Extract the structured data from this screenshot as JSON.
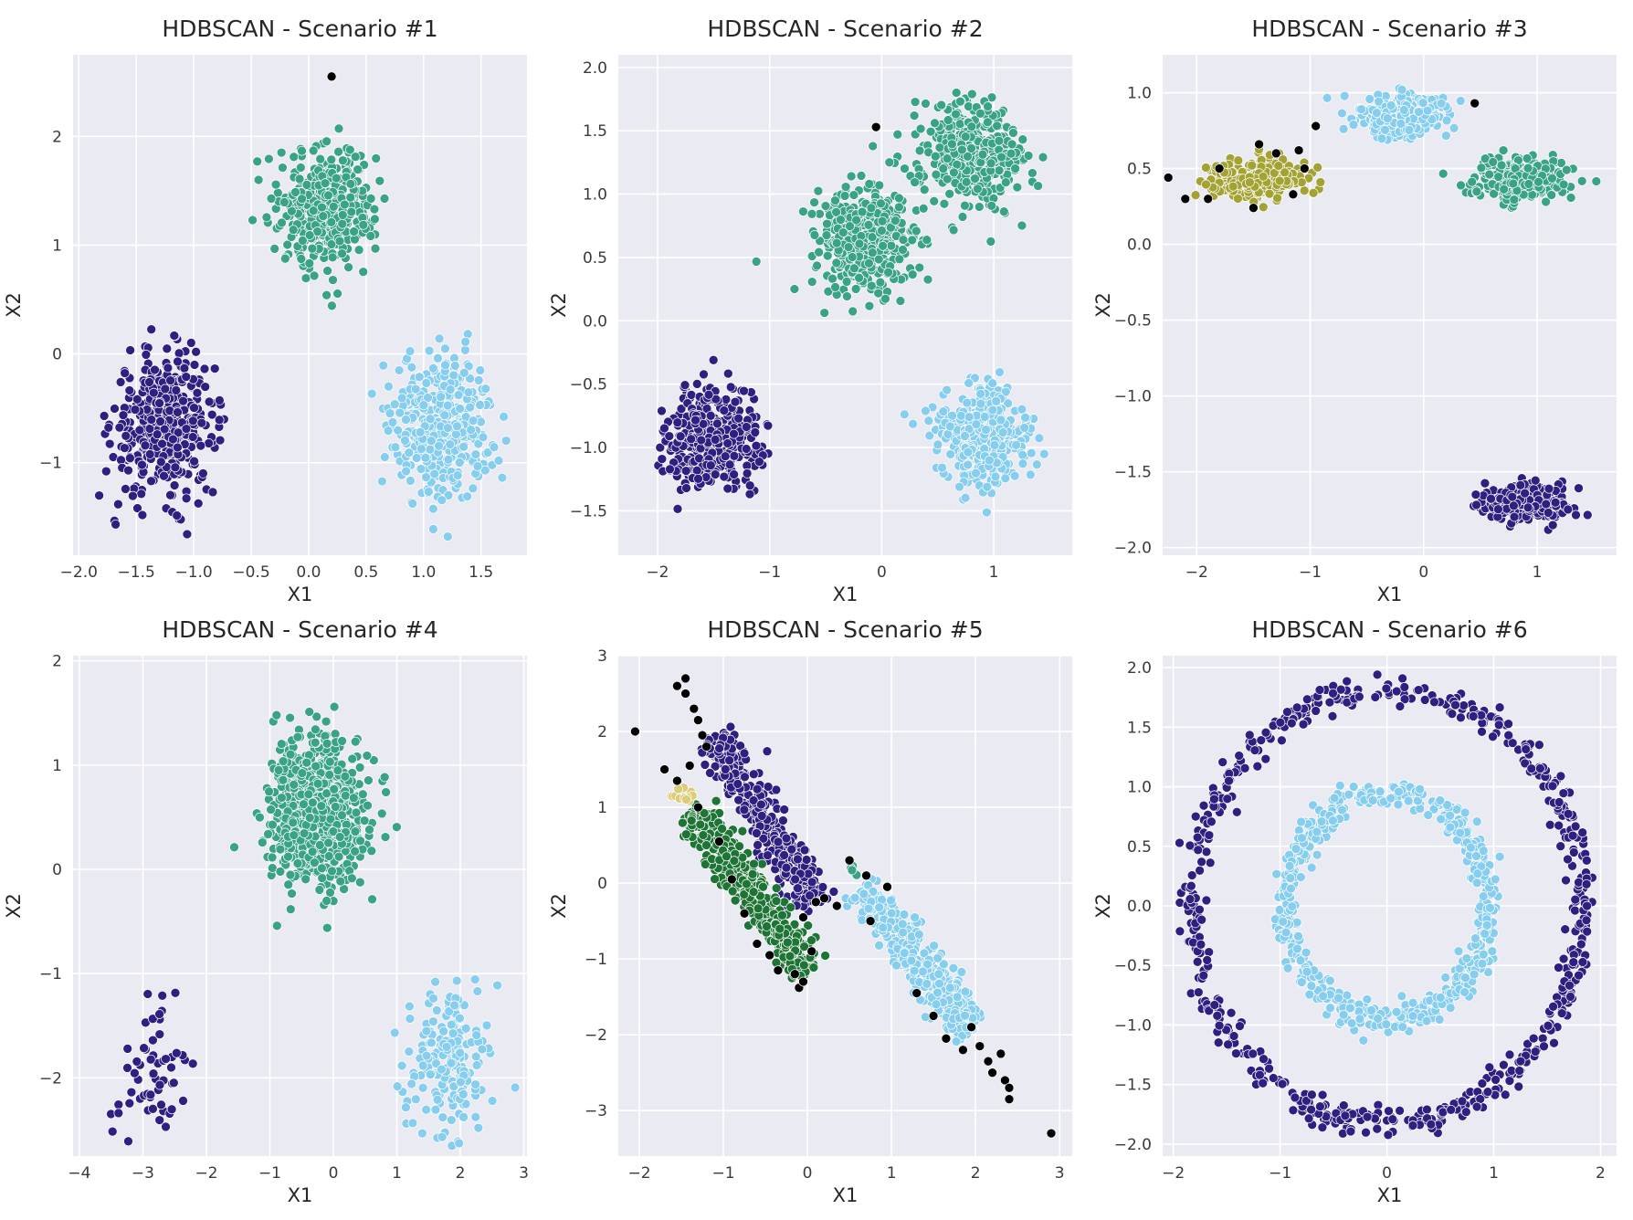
{
  "colors": {
    "cluster_indigo": "#2e1f80",
    "cluster_teal": "#3aa387",
    "cluster_skyblue": "#87cdee",
    "cluster_olive": "#a3a233",
    "cluster_darkgreen": "#1d7434",
    "cluster_sand": "#dccc7a",
    "noise": "#000000",
    "panel_background": "#eaeaf2",
    "grid": "#ffffff"
  },
  "chart_data": [
    {
      "type": "scatter",
      "title": "HDBSCAN - Scenario #1",
      "xlabel": "X1",
      "ylabel": "X2",
      "xlim": [
        -2.05,
        1.9
      ],
      "ylim": [
        -1.85,
        2.75
      ],
      "xticks": [
        -2.0,
        -1.5,
        -1.0,
        -0.5,
        0.0,
        0.5,
        1.0,
        1.5
      ],
      "xtick_labels": [
        "−2.0",
        "−1.5",
        "−1.0",
        "−0.5",
        "0.0",
        "0.5",
        "1.0",
        "1.5"
      ],
      "yticks": [
        -1,
        0,
        1,
        2
      ],
      "ytick_labels": [
        "−1",
        "0",
        "1",
        "2"
      ],
      "grid": true,
      "clusters": [
        {
          "color": "cluster_indigo",
          "shape": "gauss",
          "cx": -1.25,
          "cy": -0.65,
          "sx": 0.22,
          "sy": 0.32,
          "n": 420
        },
        {
          "color": "cluster_teal",
          "shape": "gauss",
          "cx": 0.15,
          "cy": 1.35,
          "sx": 0.2,
          "sy": 0.27,
          "n": 420
        },
        {
          "color": "cluster_skyblue",
          "shape": "gauss",
          "cx": 1.15,
          "cy": -0.65,
          "sx": 0.22,
          "sy": 0.32,
          "n": 420
        }
      ],
      "noise_points": [
        [
          0.2,
          2.55
        ]
      ]
    },
    {
      "type": "scatter",
      "title": "HDBSCAN - Scenario #2",
      "xlabel": "X1",
      "ylabel": "X2",
      "xlim": [
        -2.35,
        1.7
      ],
      "ylim": [
        -1.85,
        2.1
      ],
      "xticks": [
        -2,
        -1,
        0,
        1
      ],
      "xtick_labels": [
        "−2",
        "−1",
        "0",
        "1"
      ],
      "yticks": [
        -1.5,
        -1.0,
        -0.5,
        0.0,
        0.5,
        1.0,
        1.5,
        2.0
      ],
      "ytick_labels": [
        "−1.5",
        "−1.0",
        "−0.5",
        "0.0",
        "0.5",
        "1.0",
        "1.5",
        "2.0"
      ],
      "grid": true,
      "clusters": [
        {
          "color": "cluster_indigo",
          "shape": "gauss",
          "cx": -1.5,
          "cy": -0.95,
          "sx": 0.2,
          "sy": 0.2,
          "n": 420
        },
        {
          "color": "cluster_teal",
          "shape": "gauss",
          "cx": -0.15,
          "cy": 0.65,
          "sx": 0.22,
          "sy": 0.2,
          "n": 420
        },
        {
          "color": "cluster_teal",
          "shape": "gauss",
          "cx": 0.8,
          "cy": 1.3,
          "sx": 0.22,
          "sy": 0.2,
          "n": 420
        },
        {
          "color": "cluster_skyblue",
          "shape": "gauss",
          "cx": 0.9,
          "cy": -0.9,
          "sx": 0.2,
          "sy": 0.2,
          "n": 420
        }
      ],
      "noise_points": [
        [
          -0.05,
          1.53
        ]
      ]
    },
    {
      "type": "scatter",
      "title": "HDBSCAN - Scenario #3",
      "xlabel": "X1",
      "ylabel": "X2",
      "xlim": [
        -2.3,
        1.7
      ],
      "ylim": [
        -2.05,
        1.25
      ],
      "xticks": [
        -2,
        -1,
        0,
        1
      ],
      "xtick_labels": [
        "−2",
        "−1",
        "0",
        "1"
      ],
      "yticks": [
        -2.0,
        -1.5,
        -1.0,
        -0.5,
        0.0,
        0.5,
        1.0
      ],
      "ytick_labels": [
        "−2.0",
        "−1.5",
        "−1.0",
        "−0.5",
        "0.0",
        "0.5",
        "1.0"
      ],
      "grid": true,
      "clusters": [
        {
          "color": "cluster_olive",
          "shape": "gauss",
          "cx": -1.5,
          "cy": 0.43,
          "sx": 0.2,
          "sy": 0.065,
          "n": 360
        },
        {
          "color": "cluster_skyblue",
          "shape": "gauss",
          "cx": -0.2,
          "cy": 0.85,
          "sx": 0.2,
          "sy": 0.065,
          "n": 360
        },
        {
          "color": "cluster_teal",
          "shape": "gauss",
          "cx": 0.85,
          "cy": 0.43,
          "sx": 0.2,
          "sy": 0.065,
          "n": 360
        },
        {
          "color": "cluster_indigo",
          "shape": "gauss",
          "cx": 0.9,
          "cy": -1.7,
          "sx": 0.2,
          "sy": 0.055,
          "n": 360
        }
      ],
      "noise_points": [
        [
          -2.1,
          0.3
        ],
        [
          -1.9,
          0.3
        ],
        [
          -1.8,
          0.5
        ],
        [
          -1.5,
          0.24
        ],
        [
          -1.3,
          0.6
        ],
        [
          -1.15,
          0.33
        ],
        [
          -1.1,
          0.62
        ],
        [
          -1.05,
          0.5
        ],
        [
          -0.95,
          0.78
        ],
        [
          0.45,
          0.93
        ],
        [
          -2.25,
          0.44
        ],
        [
          -1.45,
          0.66
        ]
      ]
    },
    {
      "type": "scatter",
      "title": "HDBSCAN - Scenario #4",
      "xlabel": "X1",
      "ylabel": "X2",
      "xlim": [
        -4.1,
        3.05
      ],
      "ylim": [
        -2.75,
        2.05
      ],
      "xticks": [
        -4,
        -3,
        -2,
        -1,
        0,
        1,
        2,
        3
      ],
      "xtick_labels": [
        "−4",
        "−3",
        "−2",
        "−1",
        "0",
        "1",
        "2",
        "3"
      ],
      "yticks": [
        -2,
        -1,
        0,
        1,
        2
      ],
      "ytick_labels": [
        "−2",
        "−1",
        "0",
        "1",
        "2"
      ],
      "grid": true,
      "clusters": [
        {
          "color": "cluster_teal",
          "shape": "gauss",
          "cx": -0.25,
          "cy": 0.55,
          "sx": 0.35,
          "sy": 0.35,
          "n": 900
        },
        {
          "color": "cluster_indigo",
          "shape": "gauss",
          "cx": -2.8,
          "cy": -1.9,
          "sx": 0.3,
          "sy": 0.35,
          "n": 60
        },
        {
          "color": "cluster_skyblue",
          "shape": "gauss",
          "cx": 1.8,
          "cy": -1.85,
          "sx": 0.32,
          "sy": 0.33,
          "n": 200
        }
      ],
      "noise_points": []
    },
    {
      "type": "scatter",
      "title": "HDBSCAN - Scenario #5",
      "xlabel": "X1",
      "ylabel": "X2",
      "xlim": [
        -2.25,
        3.15
      ],
      "ylim": [
        -3.6,
        3.0
      ],
      "xticks": [
        -2,
        -1,
        0,
        1,
        2,
        3
      ],
      "xtick_labels": [
        "−2",
        "−1",
        "0",
        "1",
        "2",
        "3"
      ],
      "yticks": [
        -3,
        -2,
        -1,
        0,
        1,
        2,
        3
      ],
      "ytick_labels": [
        "−3",
        "−2",
        "−1",
        "0",
        "1",
        "2",
        "3"
      ],
      "grid": true,
      "clusters": [
        {
          "color": "cluster_indigo",
          "shape": "band",
          "x0": -1.1,
          "y0": 1.95,
          "x1": 0.1,
          "y1": -0.3,
          "width": 0.12,
          "n": 400
        },
        {
          "color": "cluster_darkgreen",
          "shape": "band",
          "x0": -1.35,
          "y0": 0.95,
          "x1": 0.0,
          "y1": -1.15,
          "width": 0.12,
          "n": 450
        },
        {
          "color": "cluster_skyblue",
          "shape": "band",
          "x0": 0.65,
          "y0": -0.05,
          "x1": 1.95,
          "y1": -1.95,
          "width": 0.12,
          "n": 450
        },
        {
          "color": "cluster_sand",
          "shape": "gauss",
          "cx": -1.5,
          "cy": 1.15,
          "sx": 0.08,
          "sy": 0.08,
          "n": 14
        },
        {
          "color": "cluster_teal",
          "shape": "gauss",
          "cx": 0.55,
          "cy": 0.18,
          "sx": 0.04,
          "sy": 0.04,
          "n": 6
        }
      ],
      "noise_points": [
        [
          -2.05,
          2.0
        ],
        [
          -1.55,
          2.6
        ],
        [
          -1.45,
          2.5
        ],
        [
          -1.45,
          2.7
        ],
        [
          -1.35,
          2.3
        ],
        [
          -1.3,
          2.15
        ],
        [
          -1.25,
          1.95
        ],
        [
          -1.2,
          1.8
        ],
        [
          -1.7,
          1.5
        ],
        [
          -1.4,
          1.55
        ],
        [
          -1.55,
          1.35
        ],
        [
          -1.3,
          1.0
        ],
        [
          -1.05,
          0.55
        ],
        [
          -0.9,
          0.05
        ],
        [
          -0.75,
          -0.4
        ],
        [
          -0.6,
          -0.8
        ],
        [
          -0.45,
          -0.95
        ],
        [
          -0.35,
          -1.15
        ],
        [
          -0.15,
          -1.2
        ],
        [
          -0.1,
          -1.38
        ],
        [
          -0.05,
          -1.3
        ],
        [
          0.05,
          -0.9
        ],
        [
          -0.05,
          -0.45
        ],
        [
          0.1,
          -0.25
        ],
        [
          0.2,
          -0.2
        ],
        [
          0.35,
          -0.3
        ],
        [
          0.5,
          0.3
        ],
        [
          0.7,
          0.1
        ],
        [
          0.95,
          -0.05
        ],
        [
          0.75,
          -0.5
        ],
        [
          1.3,
          -1.45
        ],
        [
          1.5,
          -1.75
        ],
        [
          1.65,
          -2.05
        ],
        [
          1.85,
          -2.2
        ],
        [
          1.95,
          -1.9
        ],
        [
          2.05,
          -2.15
        ],
        [
          2.15,
          -2.35
        ],
        [
          2.2,
          -2.5
        ],
        [
          2.3,
          -2.25
        ],
        [
          2.35,
          -2.6
        ],
        [
          2.4,
          -2.7
        ],
        [
          2.4,
          -2.85
        ],
        [
          2.9,
          -3.3
        ]
      ]
    },
    {
      "type": "scatter",
      "title": "HDBSCAN - Scenario #6",
      "xlabel": "X1",
      "ylabel": "X2",
      "xlim": [
        -2.1,
        2.15
      ],
      "ylim": [
        -2.1,
        2.1
      ],
      "xticks": [
        -2,
        -1,
        0,
        1,
        2
      ],
      "xtick_labels": [
        "−2",
        "−1",
        "0",
        "1",
        "2"
      ],
      "yticks": [
        -2.0,
        -1.5,
        -1.0,
        -0.5,
        0.0,
        0.5,
        1.0,
        1.5,
        2.0
      ],
      "ytick_labels": [
        "−2.0",
        "−1.5",
        "−1.0",
        "−0.5",
        "0.0",
        "0.5",
        "1.0",
        "1.5",
        "2.0"
      ],
      "grid": true,
      "clusters": [
        {
          "color": "cluster_indigo",
          "shape": "ring",
          "cx": 0.0,
          "cy": 0.0,
          "r": 1.82,
          "spread": 0.06,
          "n": 600
        },
        {
          "color": "cluster_skyblue",
          "shape": "ring",
          "cx": 0.0,
          "cy": 0.0,
          "r": 0.95,
          "spread": 0.06,
          "n": 600
        }
      ],
      "noise_points": []
    }
  ]
}
